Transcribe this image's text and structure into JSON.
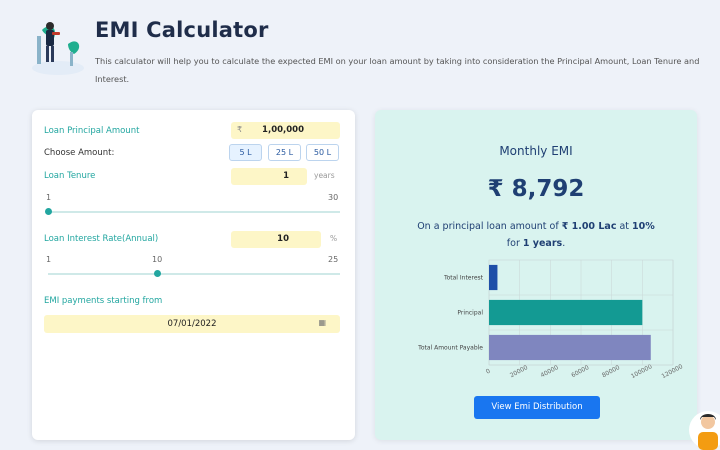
{
  "header": {
    "title": "EMI Calculator",
    "description": "This calculator will help you to calculate the expected EMI on your loan amount by taking into consideration the Principal Amount, Loan Tenure and Interest."
  },
  "form": {
    "principal_label": "Loan Principal Amount",
    "principal_symbol": "₹",
    "principal_value": "1,00,000",
    "choose_label": "Choose Amount:",
    "amount_options": [
      "5 L",
      "25 L",
      "50 L"
    ],
    "tenure_label": "Loan Tenure",
    "tenure_value": "1",
    "tenure_unit": "years",
    "tenure_min": "1",
    "tenure_max": "30",
    "tenure_level": 0.0,
    "interest_label": "Loan Interest Rate(Annual)",
    "interest_value": "10",
    "interest_unit": "%",
    "interest_min": "1",
    "interest_mid": "10",
    "interest_max": "25",
    "interest_level": 0.375,
    "emi_start_label": "EMI payments starting from",
    "emi_start_date": "07/01/2022"
  },
  "result": {
    "heading": "Monthly EMI",
    "emi": "₹ 8,792",
    "desc_prefix": "On a principal loan amount of ",
    "desc_amount": "₹ 1.00 Lac",
    "desc_at": " at ",
    "desc_rate": "10%",
    "desc_for": "for ",
    "desc_years": "1 years",
    "desc_end": ".",
    "button": "View Emi Distribution"
  },
  "chart_data": {
    "type": "bar",
    "orientation": "horizontal",
    "categories": [
      "Total Interest",
      "Principal",
      "Total Amount Payable"
    ],
    "values": [
      5504,
      100000,
      105504
    ],
    "colors": [
      "#1e4fa8",
      "#139a93",
      "#7f86bf"
    ],
    "xlim": [
      0,
      120000
    ],
    "xticks": [
      0,
      20000,
      40000,
      60000,
      80000,
      100000,
      120000
    ],
    "xtick_labels": [
      "0",
      "20000",
      "40000",
      "60000",
      "80000",
      "100000",
      "120000"
    ],
    "grid": true
  },
  "colors": {
    "accent_teal": "#22a6a0",
    "button_blue": "#1976f0",
    "result_bg": "#d9f3ef",
    "input_yellow": "#fdf6c7"
  }
}
